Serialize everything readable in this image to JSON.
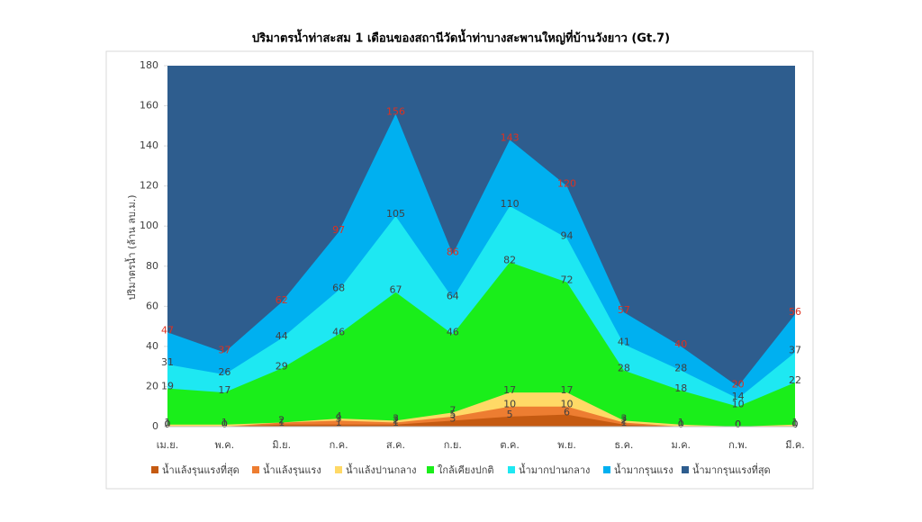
{
  "chart_data": {
    "type": "threshold-area",
    "title": "ปริมาตรน้ำท่าสะสม 1 เดือนของสถานีวัดน้ำท่าบางสะพานใหญ่ที่บ้านวังยาว (Gt.7)",
    "y_label": "ปริมาตรน้ำ (ล้าน ลบ.ม.)",
    "categories": [
      "เม.ย.",
      "พ.ค.",
      "มิ.ย.",
      "ก.ค.",
      "ส.ค.",
      "ก.ย.",
      "ต.ค.",
      "พ.ย.",
      "ธ.ค.",
      "ม.ค.",
      "ก.พ.",
      "มี.ค."
    ],
    "ylim": [
      0,
      180
    ],
    "yticks": [
      0,
      20,
      40,
      60,
      80,
      100,
      120,
      140,
      160,
      180
    ],
    "series": [
      {
        "name": "น้ำแล้งรุนแรงที่สุด",
        "color": "#c55a11",
        "label_color": "#404040",
        "values": [
          0,
          0,
          1,
          1,
          1,
          3,
          5,
          6,
          1,
          0,
          0,
          0
        ]
      },
      {
        "name": "น้ำแล้งรุนแรง",
        "color": "#ed7d31",
        "label_color": "#404040",
        "values": [
          0,
          0,
          2,
          3,
          2,
          5,
          10,
          10,
          2,
          0,
          0,
          0
        ]
      },
      {
        "name": "น้ำแล้งปานกลาง",
        "color": "#ffd966",
        "label_color": "#404040",
        "values": [
          1,
          1,
          2,
          4,
          3,
          7,
          17,
          17,
          3,
          1,
          0,
          1
        ]
      },
      {
        "name": "ใกล้เคียงปกติ",
        "color": "#1aee1a",
        "label_color": "#404040",
        "values": [
          19,
          17,
          29,
          46,
          67,
          46,
          82,
          72,
          28,
          18,
          10,
          22
        ]
      },
      {
        "name": "น้ำมากปานกลาง",
        "color": "#1ee8f2",
        "label_color": "#404040",
        "values": [
          31,
          26,
          44,
          68,
          105,
          64,
          110,
          94,
          41,
          28,
          14,
          37
        ]
      },
      {
        "name": "น้ำมากรุนแรง",
        "color": "#00b0f0",
        "label_color": "#e0301e",
        "values": [
          47,
          37,
          62,
          97,
          156,
          86,
          143,
          120,
          57,
          40,
          20,
          56
        ]
      },
      {
        "name": "น้ำมากรุนแรงที่สุด",
        "color": "#2e5d8e",
        "show_labels": false,
        "values": [
          180,
          180,
          180,
          180,
          180,
          180,
          180,
          180,
          180,
          180,
          180,
          180
        ]
      }
    ]
  }
}
